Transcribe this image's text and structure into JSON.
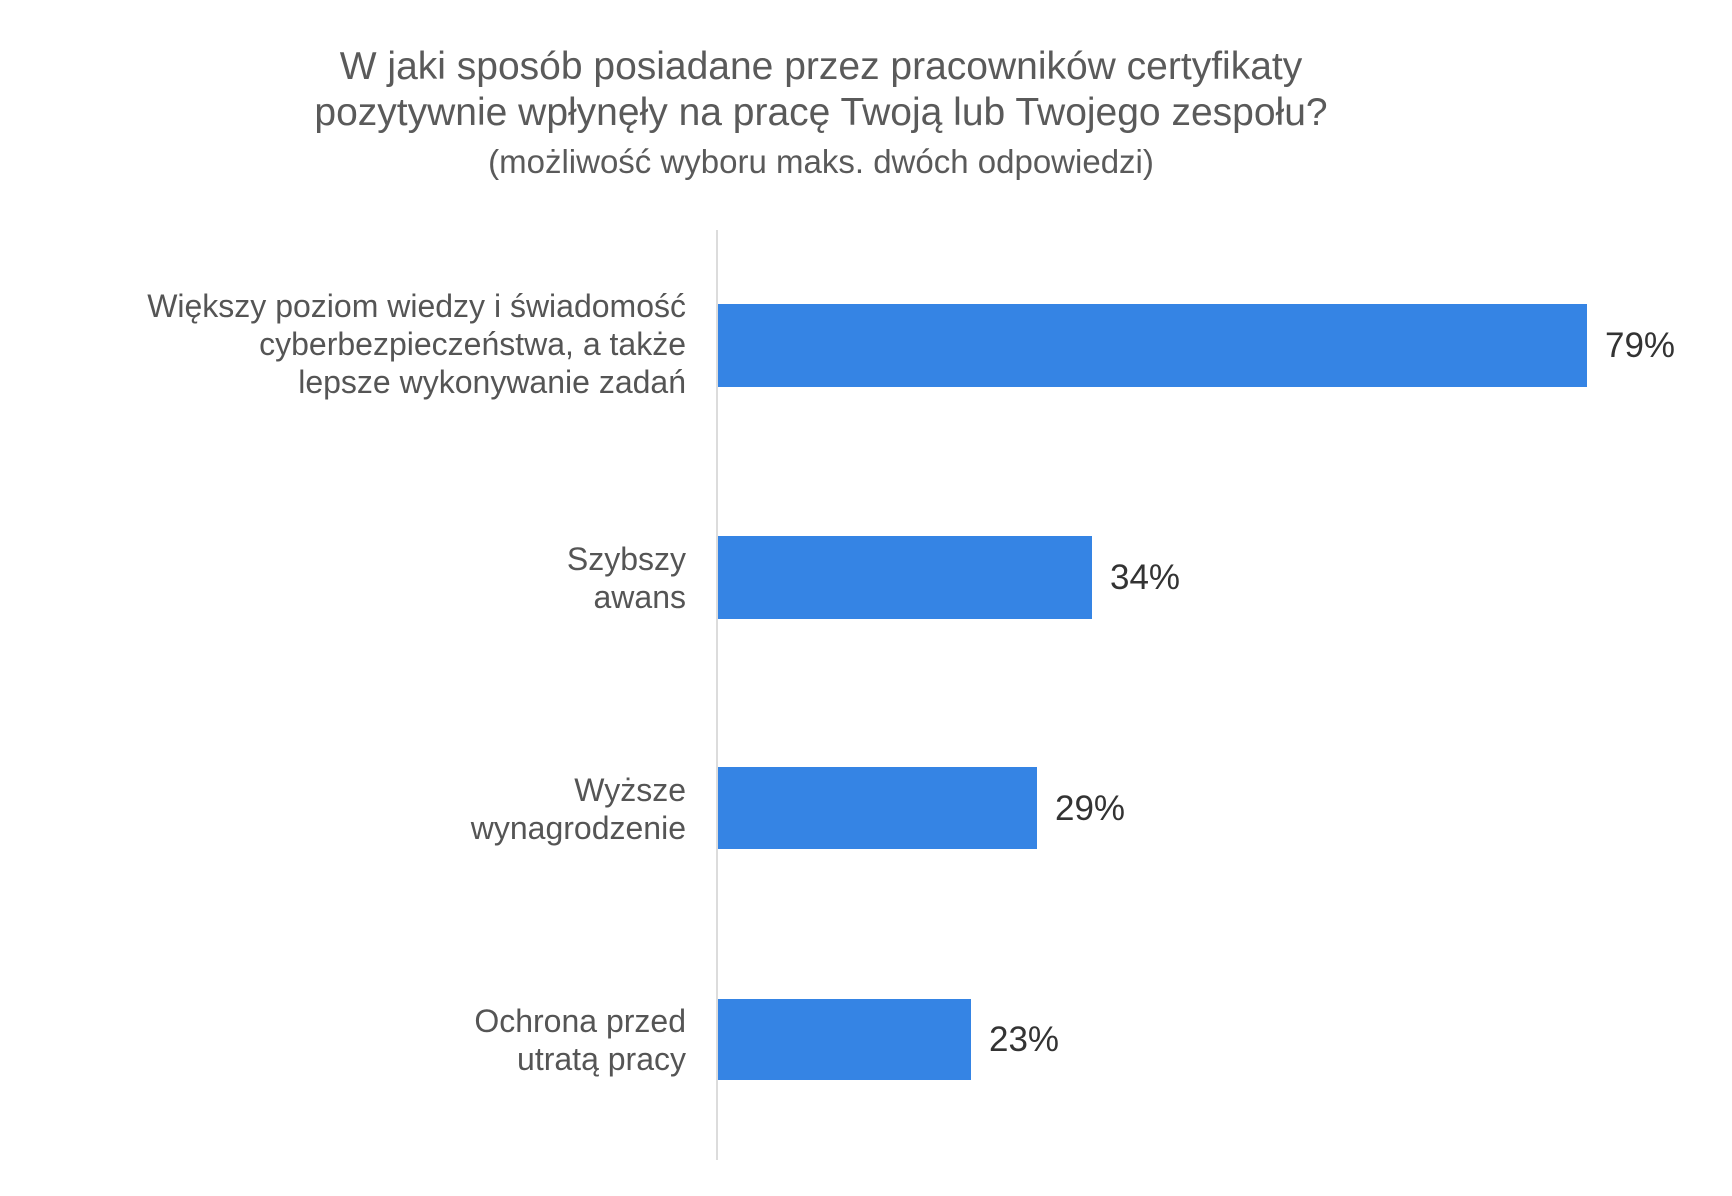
{
  "chart_data": {
    "type": "bar",
    "orientation": "horizontal",
    "title": "W jaki sposób posiadane przez pracowników certyfikaty pozytywnie wpłynęły na pracę Twoją lub Twojego zespołu?",
    "subtitle": "(możliwość wyboru maks. dwóch odpowiedzi)",
    "categories": [
      "Większy poziom wiedzy i świadomość cyberbezpieczeństwa, a także lepsze wykonywanie zadań",
      "Szybszy awans",
      "Wyższe wynagrodzenie",
      "Ochrona przed utratą pracy"
    ],
    "values": [
      79,
      34,
      29,
      23
    ],
    "unit": "%",
    "xlabel": "",
    "ylabel": "",
    "xlim": [
      0,
      100
    ],
    "grid": false,
    "legend": null,
    "bar_color": "#3584e4"
  },
  "title": {
    "line1": "W jaki sposób posiadane przez pracowników certyfikaty",
    "line2": "pozytywnie wpłynęły na pracę Twoją lub Twojego zespołu?",
    "line3": "(możliwość wyboru maks. dwóch odpowiedzi)"
  },
  "rows": [
    {
      "label": "Większy poziom wiedzy i świadomość\ncyberbezpieczeństwa, a także\nlepsze wykonywanie zadań",
      "value_label": "79%"
    },
    {
      "label": "Szybszy\nawans",
      "value_label": "34%"
    },
    {
      "label": "Wyższe\nwynagrodzenie",
      "value_label": "29%"
    },
    {
      "label": "Ochrona przed\nutratą pracy",
      "value_label": "23%"
    }
  ]
}
